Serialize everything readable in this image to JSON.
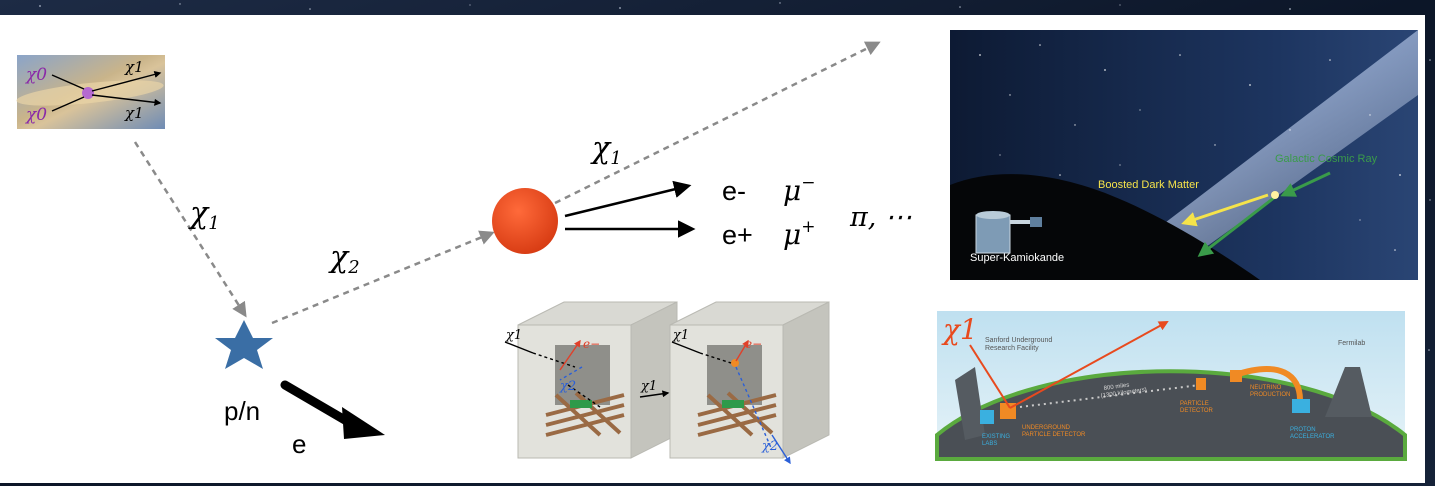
{
  "main_diagram": {
    "chi_symbol": "χ",
    "sub_0": "0",
    "sub_1": "1",
    "sub_2": "2",
    "products": {
      "e_minus": "e-",
      "e_plus": "e+",
      "mu_minus": "μ",
      "mu_minus_sup": "−",
      "mu_plus": "μ",
      "mu_plus_sup": "+",
      "pi_more": "π, ⋯"
    },
    "target_label": "p/n",
    "recoil_label": "e"
  },
  "galaxy_inset": {
    "chi0_top": "χ0",
    "chi0_bottom": "χ0",
    "chi1_top": "χ1",
    "chi1_bottom": "χ1"
  },
  "superk_panel": {
    "boosted_label": "Boosted Dark Matter",
    "cosmic_label": "Galactic Cosmic Ray",
    "detector_label": "Super-Kamiokande",
    "colors": {
      "boosted": "#f5e34a",
      "cosmic": "#3a9b4a"
    }
  },
  "dune_panel": {
    "chi_label": "χ1",
    "sanford": "Sanford Underground\nResearch Facility",
    "fermilab": "Fermilab",
    "distance": "800 miles\n(1300 kilometers)",
    "underground_detector": "UNDERGROUND\nPARTICLE DETECTOR",
    "existing_labs": "EXISTING\nLABS",
    "particle_detector": "PARTICLE\nDETECTOR",
    "neutrino_production": "NEUTRINO\nPRODUCTION",
    "proton_accelerator": "PROTON\nACCELERATOR"
  },
  "detector_cubes": {
    "left": {
      "chi1_in": "χ1",
      "e_minus": "e−",
      "chi2": "χ2",
      "chi1_out": "χ1"
    },
    "right": {
      "chi1_in": "χ1",
      "e_minus": "e−",
      "chi2": "χ2"
    }
  }
}
